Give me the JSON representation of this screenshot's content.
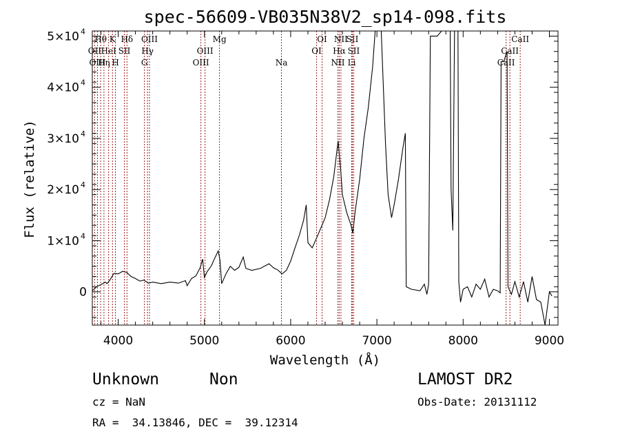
{
  "chart_data": {
    "type": "line",
    "title": "spec-56609-VB035N38V2_sp14-098.fits",
    "xlabel": "Wavelength (Å)",
    "ylabel": "Flux (relative)",
    "xlim": [
      3700,
      9100
    ],
    "ylim": [
      -6500,
      51000
    ],
    "x_ticks": [
      4000,
      5000,
      6000,
      7000,
      8000,
      9000
    ],
    "y_ticks": [
      {
        "value": 0,
        "label": "0",
        "exp": ""
      },
      {
        "value": 10000,
        "label": "1×10",
        "exp": "4"
      },
      {
        "value": 20000,
        "label": "2×10",
        "exp": "4"
      },
      {
        "value": 30000,
        "label": "3×10",
        "exp": "4"
      },
      {
        "value": 40000,
        "label": "4×10",
        "exp": "4"
      },
      {
        "value": 50000,
        "label": "5×10",
        "exp": "4"
      }
    ],
    "grid": false,
    "spectrum": [
      [
        3700,
        200
      ],
      [
        3750,
        1000
      ],
      [
        3800,
        1400
      ],
      [
        3850,
        1900
      ],
      [
        3870,
        1600
      ],
      [
        3900,
        2200
      ],
      [
        3950,
        3600
      ],
      [
        4000,
        3500
      ],
      [
        4050,
        4000
      ],
      [
        4100,
        3800
      ],
      [
        4150,
        3000
      ],
      [
        4200,
        2600
      ],
      [
        4250,
        2100
      ],
      [
        4300,
        2300
      ],
      [
        4350,
        1700
      ],
      [
        4400,
        1900
      ],
      [
        4500,
        1600
      ],
      [
        4600,
        1900
      ],
      [
        4700,
        1700
      ],
      [
        4780,
        2200
      ],
      [
        4800,
        1200
      ],
      [
        4850,
        2600
      ],
      [
        4900,
        3100
      ],
      [
        4950,
        4700
      ],
      [
        4980,
        6400
      ],
      [
        5000,
        2800
      ],
      [
        5030,
        3900
      ],
      [
        5080,
        5100
      ],
      [
        5120,
        6600
      ],
      [
        5160,
        8000
      ],
      [
        5180,
        6200
      ],
      [
        5200,
        1600
      ],
      [
        5250,
        3500
      ],
      [
        5300,
        5000
      ],
      [
        5350,
        4200
      ],
      [
        5400,
        4800
      ],
      [
        5450,
        6800
      ],
      [
        5480,
        4600
      ],
      [
        5550,
        4200
      ],
      [
        5650,
        4600
      ],
      [
        5750,
        5500
      ],
      [
        5800,
        4700
      ],
      [
        5850,
        4300
      ],
      [
        5900,
        3500
      ],
      [
        5950,
        4200
      ],
      [
        6000,
        6000
      ],
      [
        6050,
        8600
      ],
      [
        6100,
        11000
      ],
      [
        6150,
        14000
      ],
      [
        6180,
        17000
      ],
      [
        6200,
        9600
      ],
      [
        6250,
        8600
      ],
      [
        6300,
        10500
      ],
      [
        6400,
        14500
      ],
      [
        6450,
        18000
      ],
      [
        6500,
        22500
      ],
      [
        6550,
        29500
      ],
      [
        6580,
        24000
      ],
      [
        6600,
        19000
      ],
      [
        6650,
        15500
      ],
      [
        6700,
        13000
      ],
      [
        6720,
        11500
      ],
      [
        6750,
        16000
      ],
      [
        6800,
        22000
      ],
      [
        6850,
        30000
      ],
      [
        6900,
        36000
      ],
      [
        6950,
        44000
      ],
      [
        6980,
        51000
      ],
      [
        7050,
        51000
      ],
      [
        7100,
        29000
      ],
      [
        7130,
        19000
      ],
      [
        7170,
        14500
      ],
      [
        7200,
        17000
      ],
      [
        7250,
        22000
      ],
      [
        7300,
        28000
      ],
      [
        7330,
        31000
      ],
      [
        7340,
        1000
      ],
      [
        7400,
        500
      ],
      [
        7500,
        200
      ],
      [
        7550,
        1500
      ],
      [
        7580,
        -500
      ],
      [
        7600,
        1500
      ],
      [
        7620,
        50000
      ],
      [
        7700,
        50000
      ],
      [
        7750,
        51000
      ],
      [
        7850,
        51000
      ],
      [
        7860,
        20000
      ],
      [
        7880,
        12000
      ],
      [
        7900,
        51000
      ],
      [
        7940,
        51000
      ],
      [
        7950,
        2000
      ],
      [
        7970,
        -2000
      ],
      [
        8000,
        500
      ],
      [
        8050,
        1000
      ],
      [
        8100,
        -1000
      ],
      [
        8150,
        1500
      ],
      [
        8200,
        500
      ],
      [
        8250,
        2500
      ],
      [
        8300,
        -1000
      ],
      [
        8350,
        500
      ],
      [
        8400,
        200
      ],
      [
        8430,
        -200
      ],
      [
        8440,
        45000
      ],
      [
        8470,
        45000
      ],
      [
        8490,
        46000
      ],
      [
        8510,
        47000
      ],
      [
        8520,
        1000
      ],
      [
        8560,
        -500
      ],
      [
        8600,
        2000
      ],
      [
        8650,
        -1000
      ],
      [
        8700,
        2000
      ],
      [
        8750,
        -2000
      ],
      [
        8800,
        3000
      ],
      [
        8850,
        -1500
      ],
      [
        8900,
        -2000
      ],
      [
        8950,
        -6500
      ],
      [
        9000,
        0
      ],
      [
        9030,
        -800
      ]
    ],
    "lines": [
      {
        "label": "Hθ",
        "wl": 3797,
        "row": 0
      },
      {
        "label": "OII",
        "wl": 3727,
        "row": 1
      },
      {
        "label": "OIII",
        "wl": 3760,
        "row": 2
      },
      {
        "label": "Hη",
        "wl": 3835,
        "row": 2
      },
      {
        "label": "HeI",
        "wl": 3889,
        "row": 1
      },
      {
        "label": "K",
        "wl": 3934,
        "row": 0
      },
      {
        "label": "H",
        "wl": 3968,
        "row": 2
      },
      {
        "label": "SII",
        "wl": 4072,
        "row": 1
      },
      {
        "label": "Hδ",
        "wl": 4102,
        "row": 0
      },
      {
        "label": "OIII",
        "wl": 4363,
        "row": 0
      },
      {
        "label": "Hγ",
        "wl": 4340,
        "row": 1
      },
      {
        "label": "G",
        "wl": 4304,
        "row": 2
      },
      {
        "label": "OIII",
        "wl": 5007,
        "row": 1
      },
      {
        "label": "OIII",
        "wl": 4959,
        "row": 2
      },
      {
        "label": "Mg",
        "wl": 5175,
        "row": 0
      },
      {
        "label": "Na",
        "wl": 5893,
        "row": 2
      },
      {
        "label": "OI",
        "wl": 6364,
        "row": 0
      },
      {
        "label": "OI",
        "wl": 6300,
        "row": 1
      },
      {
        "label": "NII",
        "wl": 6583,
        "row": 0
      },
      {
        "label": "SII",
        "wl": 6716,
        "row": 0
      },
      {
        "label": "Hα",
        "wl": 6563,
        "row": 1
      },
      {
        "label": "SII",
        "wl": 6731,
        "row": 1
      },
      {
        "label": "NII",
        "wl": 6548,
        "row": 2
      },
      {
        "label": "Li",
        "wl": 6708,
        "row": 2
      },
      {
        "label": "CaII",
        "wl": 8662,
        "row": 0
      },
      {
        "label": "CaII",
        "wl": 8542,
        "row": 1
      },
      {
        "label": "CaII",
        "wl": 8498,
        "row": 2
      }
    ]
  },
  "info": {
    "class": "Unknown",
    "subclass": "Non",
    "survey": "LAMOST DR2",
    "cz": "cz = NaN",
    "obs_date": "Obs-Date: 20131112",
    "coords": "RA =  34.13846, DEC =  39.12314"
  }
}
